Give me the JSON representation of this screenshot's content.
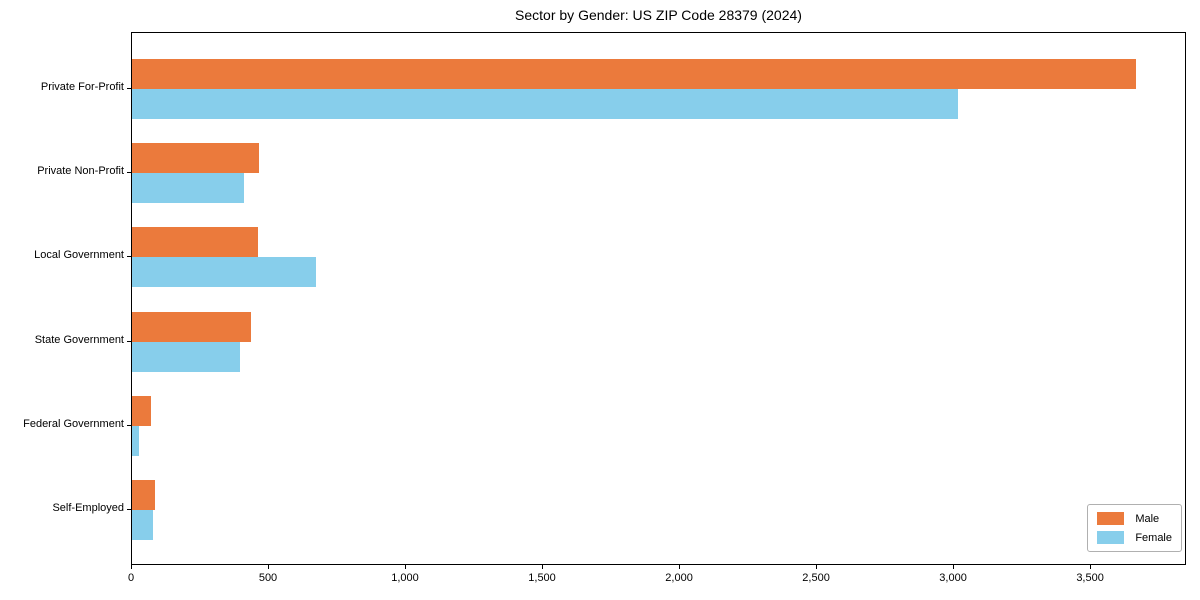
{
  "title": "Sector by Gender: US ZIP Code 28379 (2024)",
  "chart_data": {
    "type": "bar",
    "orientation": "horizontal",
    "title": "Sector by Gender: US ZIP Code 28379 (2024)",
    "categories": [
      "Private For-Profit",
      "Private Non-Profit",
      "Local Government",
      "State Government",
      "Federal Government",
      "Self-Employed"
    ],
    "series": [
      {
        "name": "Male",
        "color": "#EB7A3C",
        "values": [
          3665,
          465,
          460,
          435,
          70,
          85
        ]
      },
      {
        "name": "Female",
        "color": "#87CEEB",
        "values": [
          3015,
          410,
          670,
          395,
          25,
          75
        ]
      }
    ],
    "xlabel": "",
    "ylabel": "",
    "xlim": [
      0,
      3850
    ],
    "xticks": [
      0,
      500,
      1000,
      1500,
      2000,
      2500,
      3000,
      3500
    ],
    "xtick_labels": [
      "0",
      "500",
      "1,000",
      "1,500",
      "2,000",
      "2,500",
      "3,000",
      "3,500"
    ],
    "grid": false,
    "legend_position": "lower right"
  }
}
